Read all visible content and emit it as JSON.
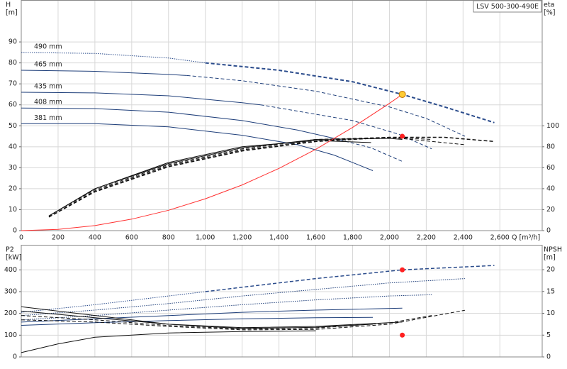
{
  "chart_data": [
    {
      "type": "line",
      "title": "LSV 500-300-490E",
      "ylabel": "H",
      "yunit": "[m]",
      "y2label": "eta",
      "y2unit": "[%]",
      "xlabel": "Q [m³/h]",
      "xlim": [
        0,
        2830
      ],
      "ylim": [
        0,
        110
      ],
      "y2lim": [
        0,
        220
      ],
      "grid": true,
      "show_xtick_labels": true,
      "xticks": [
        0,
        200,
        400,
        600,
        800,
        {
          "value": 1000,
          "label": "1,000"
        },
        {
          "value": 1200,
          "label": "1,200"
        },
        {
          "value": 1400,
          "label": "1,400"
        },
        {
          "value": 1600,
          "label": "1,600"
        },
        {
          "value": 1800,
          "label": "1,800"
        },
        {
          "value": 2000,
          "label": "2,000"
        },
        {
          "value": 2200,
          "label": "2,200"
        },
        {
          "value": 2400,
          "label": "2,400"
        },
        {
          "value": 2600,
          "label": "2,600"
        }
      ],
      "yticks": [
        0,
        10,
        20,
        30,
        40,
        50,
        60,
        70,
        80,
        90
      ],
      "y2ticks": [
        0,
        20,
        40,
        60,
        80,
        100
      ],
      "series": [
        {
          "name": "381 mm",
          "color": "#1f3f7a",
          "style": "solid",
          "width": 1,
          "x": [
            0,
            400,
            800,
            1200,
            1500,
            1700,
            1910
          ],
          "values": [
            51,
            51,
            49.5,
            45.5,
            41,
            36,
            28.6
          ]
        },
        {
          "name": "408 mm",
          "color": "#1f3f7a",
          "style": "solid",
          "width": 1,
          "x": [
            0,
            400,
            800,
            1200,
            1500,
            1700
          ],
          "values": [
            58.5,
            58.2,
            56.5,
            52.5,
            48,
            44
          ]
        },
        {
          "color": "#1f3f7a",
          "style": "dashed",
          "width": 1,
          "x": [
            1700,
            1900,
            2070
          ],
          "values": [
            44,
            39.5,
            33
          ]
        },
        {
          "name": "435 mm",
          "color": "#1f3f7a",
          "style": "solid",
          "width": 1,
          "x": [
            0,
            400,
            800,
            1200,
            1300
          ],
          "values": [
            66,
            65.7,
            64.3,
            61,
            60
          ]
        },
        {
          "color": "#1f3f7a",
          "style": "dashed",
          "width": 1,
          "x": [
            1300,
            1600,
            1800,
            2050,
            2230
          ],
          "values": [
            60,
            55.5,
            52.5,
            46,
            39
          ]
        },
        {
          "name": "465 mm",
          "color": "#1f3f7a",
          "style": "solid",
          "width": 1,
          "x": [
            0,
            400,
            800,
            900
          ],
          "values": [
            76.5,
            76,
            74.5,
            74
          ]
        },
        {
          "color": "#1f3f7a",
          "style": "dashed",
          "width": 1,
          "x": [
            900,
            1200,
            1600,
            2000,
            2200,
            2410
          ],
          "values": [
            74,
            71.5,
            66.5,
            59,
            53.5,
            45
          ]
        },
        {
          "name": "490 mm",
          "color": "#2b4c8c",
          "style": "dotted",
          "width": 1,
          "x": [
            0,
            400,
            800,
            1000
          ],
          "values": [
            85,
            84.5,
            82.3,
            80
          ]
        },
        {
          "color": "#2b4c8c",
          "style": "dashed",
          "width": 2,
          "x": [
            1000,
            1400,
            1800,
            2070,
            2300,
            2570
          ],
          "values": [
            80,
            76.5,
            71,
            65,
            59,
            51.5
          ]
        },
        {
          "color": "#111111",
          "style": "solid",
          "width": 1,
          "axis": "y2",
          "x": [
            150,
            400,
            800,
            1200,
            1600,
            1900
          ],
          "values": [
            14,
            40,
            65,
            80,
            86,
            84
          ]
        },
        {
          "color": "#111111",
          "style": "solid",
          "width": 1,
          "axis": "y2",
          "x": [
            150,
            400,
            800,
            1200,
            1600,
            2000,
            2070
          ],
          "values": [
            14,
            40,
            64,
            79,
            87,
            88,
            87
          ]
        },
        {
          "color": "#111111",
          "style": "dashed",
          "width": 1,
          "axis": "y2",
          "x": [
            150,
            400,
            800,
            1200,
            1600,
            2000,
            2230
          ],
          "values": [
            14,
            39,
            63,
            78,
            87,
            89,
            87
          ]
        },
        {
          "color": "#111111",
          "style": "dashed",
          "width": 1,
          "axis": "y2",
          "x": [
            150,
            400,
            800,
            1200,
            1600,
            2000,
            2410
          ],
          "values": [
            13,
            38,
            62,
            77,
            86,
            89,
            82
          ]
        },
        {
          "color": "#111111",
          "style": "dashed",
          "width": 1.5,
          "axis": "y2",
          "x": [
            150,
            400,
            800,
            1200,
            1600,
            2000,
            2300,
            2570
          ],
          "values": [
            13,
            37,
            61,
            76,
            85,
            89,
            89,
            85
          ]
        },
        {
          "color": "#ff3030",
          "style": "solid",
          "width": 1,
          "x": [
            0,
            200,
            400,
            600,
            800,
            1000,
            1200,
            1400,
            1600,
            1800,
            2000,
            2070
          ],
          "values": [
            0,
            0.6,
            2.4,
            5.5,
            9.7,
            15.2,
            21.8,
            29.7,
            38.8,
            49.2,
            60.7,
            65
          ]
        }
      ],
      "markers": [
        {
          "x": 2070,
          "value": 65,
          "color": "#ffcc33"
        },
        {
          "x": 2070,
          "value": 90,
          "color": "#ff2020",
          "axis": "y2"
        }
      ]
    },
    {
      "type": "line",
      "ylabel": "P2",
      "yunit": "[kW]",
      "y2label": "NPSH",
      "y2unit": "[m]",
      "xlim": [
        0,
        2830
      ],
      "ylim": [
        0,
        515
      ],
      "y2lim": [
        0,
        25.7
      ],
      "grid": true,
      "show_xtick_labels": false,
      "xticks": [
        0,
        200,
        400,
        600,
        800,
        1000,
        1200,
        1400,
        1600,
        1800,
        2000,
        2200,
        2400,
        2600
      ],
      "yticks": [
        0,
        100,
        200,
        300,
        400
      ],
      "y2ticks": [
        0,
        5,
        10,
        15,
        20
      ],
      "series": [
        {
          "color": "#1f3f7a",
          "style": "solid",
          "width": 1,
          "x": [
            0,
            400,
            800,
            1200,
            1600,
            1910
          ],
          "values": [
            145,
            157,
            167,
            175,
            180,
            182
          ]
        },
        {
          "color": "#1f3f7a",
          "style": "solid",
          "width": 1,
          "x": [
            0,
            400,
            800,
            1200,
            1600,
            2070
          ],
          "values": [
            160,
            175,
            190,
            205,
            215,
            224
          ]
        },
        {
          "color": "#1f3f7a",
          "style": "dotted",
          "width": 1,
          "x": [
            0,
            400,
            800,
            1200,
            1600,
            2000,
            2230
          ],
          "values": [
            170,
            190,
            215,
            240,
            262,
            280,
            286
          ]
        },
        {
          "color": "#1f3f7a",
          "style": "dotted",
          "width": 1,
          "x": [
            0,
            400,
            800,
            1200,
            1600,
            2000,
            2410
          ],
          "values": [
            190,
            215,
            245,
            280,
            310,
            340,
            360
          ]
        },
        {
          "color": "#2b4c8c",
          "style": "dotted",
          "width": 1,
          "x": [
            0,
            400,
            800,
            1000
          ],
          "values": [
            205,
            240,
            280,
            300
          ]
        },
        {
          "color": "#2b4c8c",
          "style": "dashed",
          "width": 1.5,
          "x": [
            1000,
            1200,
            1600,
            2070,
            2570
          ],
          "values": [
            300,
            320,
            360,
            400,
            420
          ]
        },
        {
          "color": "#111111",
          "style": "solid",
          "width": 1,
          "axis": "y2",
          "x": [
            0,
            400,
            800,
            1200,
            1600,
            1910
          ],
          "values": [
            11.5,
            9.5,
            7.5,
            6.5,
            6.8,
            7.5
          ]
        },
        {
          "color": "#111111",
          "style": "solid",
          "width": 1,
          "axis": "y2",
          "x": [
            0,
            400,
            800,
            1200,
            1600,
            2070
          ],
          "values": [
            10.5,
            9,
            7.5,
            6.7,
            7,
            8
          ]
        },
        {
          "color": "#111111",
          "style": "dashed",
          "width": 1,
          "axis": "y2",
          "x": [
            0,
            400,
            800,
            1200,
            1600,
            2000,
            2230
          ],
          "values": [
            9.5,
            8.5,
            7.2,
            6.4,
            6.6,
            7.8,
            9.5
          ]
        },
        {
          "color": "#111111",
          "style": "dashed",
          "width": 1,
          "axis": "y2",
          "x": [
            0,
            400,
            800,
            1200,
            1600,
            2000,
            2410
          ],
          "values": [
            8.5,
            8,
            7,
            6.2,
            6.3,
            7.5,
            10.7
          ]
        },
        {
          "color": "#111111",
          "style": "solid",
          "width": 1,
          "axis": "y2",
          "x": [
            0,
            200,
            400,
            800,
            1200,
            1600
          ],
          "values": [
            1,
            3,
            4.5,
            5.5,
            5.8,
            6
          ]
        }
      ],
      "markers": [
        {
          "x": 2070,
          "value": 400,
          "color": "#ff2020"
        },
        {
          "x": 2070,
          "value": 5,
          "color": "#ff2020",
          "axis": "y2"
        }
      ]
    }
  ]
}
